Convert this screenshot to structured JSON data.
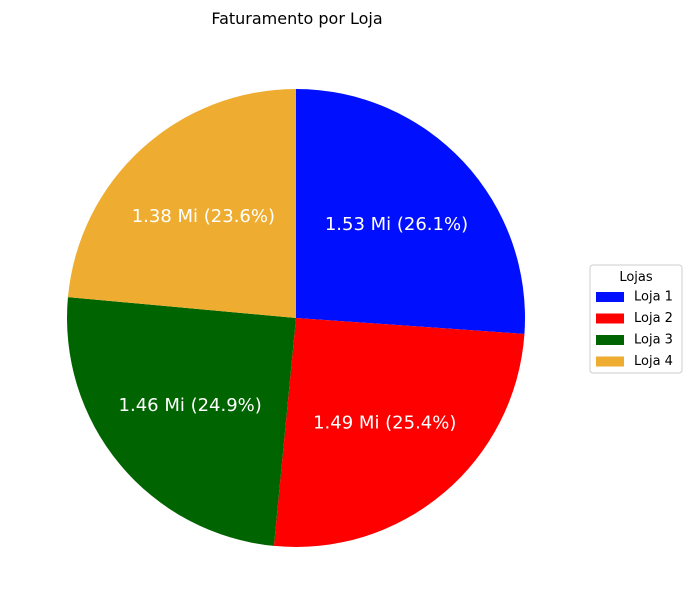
{
  "chart_data": {
    "type": "pie",
    "title": "Faturamento por Loja",
    "categories": [
      "Loja 1",
      "Loja 2",
      "Loja 3",
      "Loja 4"
    ],
    "values": [
      1.53,
      1.49,
      1.46,
      1.38
    ],
    "percentages": [
      26.1,
      25.4,
      24.9,
      23.6
    ],
    "data_labels": [
      "1.53 Mi (26.1%)",
      "1.49 Mi (25.4%)",
      "1.46 Mi (24.9%)",
      "1.38 Mi (23.6%)"
    ],
    "colors": [
      "#0010ff",
      "#ff0000",
      "#006400",
      "#eead30"
    ],
    "start_angle_deg": 90,
    "direction": "clockwise",
    "legend": {
      "title": "Lojas",
      "placement": "center-right"
    }
  }
}
